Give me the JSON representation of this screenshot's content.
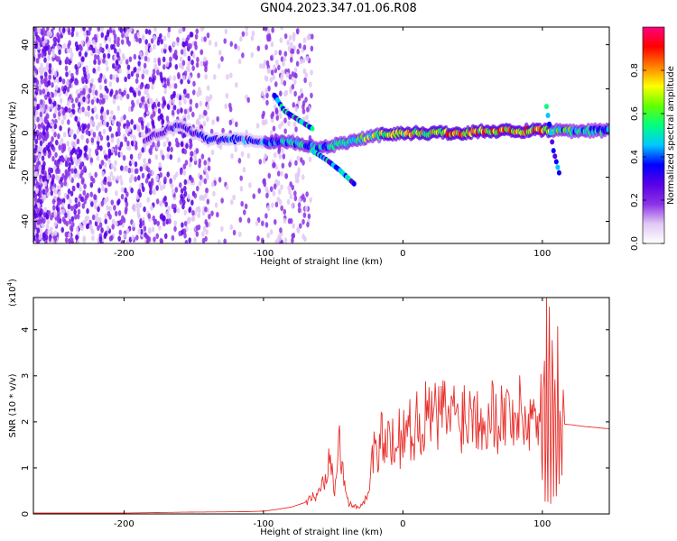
{
  "title": "GN04.2023.347.01.06.R08",
  "chart_data": [
    {
      "type": "heatmap",
      "title": "",
      "xlabel": "Height of straight line (km)",
      "ylabel": "Frequency (Hz)",
      "xlim": [
        -265,
        148
      ],
      "ylim": [
        -50,
        48
      ],
      "xticks": [
        -200,
        -100,
        0,
        100
      ],
      "xticklabels": [
        "-200",
        "-100",
        "0",
        "100"
      ],
      "yticks": [
        -40,
        -20,
        0,
        20,
        40
      ],
      "yticklabels": [
        "-40",
        "-20",
        "0",
        "20",
        "40"
      ],
      "colorbar": {
        "label": "Normalized spectral amplitude",
        "range": [
          0,
          1
        ],
        "ticks": [
          0.0,
          0.2,
          0.4,
          0.6,
          0.8
        ],
        "ticklabels": [
          "0.0",
          "0.2",
          "0.4",
          "0.6",
          "0.8"
        ],
        "colors": [
          "#ffffff",
          "#e0c8f4",
          "#8c32e6",
          "#5a00e6",
          "#0000ff",
          "#00c8ff",
          "#00ff80",
          "#64ff00",
          "#ffff00",
          "#ff8000",
          "#ff0000",
          "#ff0080"
        ]
      },
      "ridge": {
        "x": [
          -185,
          -160,
          -140,
          -120,
          -100,
          -80,
          -60,
          -40,
          -20,
          0,
          20,
          40,
          60,
          80,
          100,
          110,
          148
        ],
        "y": [
          -3,
          4,
          -3,
          -3,
          -4,
          -4,
          -7,
          -4,
          -1,
          0,
          0,
          0,
          1,
          1,
          1,
          1,
          1
        ],
        "amplitude": [
          0.3,
          0.35,
          0.4,
          0.45,
          0.45,
          0.55,
          0.6,
          0.65,
          0.75,
          0.8,
          0.85,
          0.9,
          0.95,
          1.0,
          0.9,
          0.7,
          0.5
        ]
      },
      "branches": [
        {
          "x": [
            -92,
            -85,
            -75,
            -65
          ],
          "y": [
            17,
            10,
            6,
            2
          ]
        },
        {
          "x": [
            -65,
            -55,
            -45,
            -35
          ],
          "y": [
            -8,
            -12,
            -17,
            -23
          ]
        },
        {
          "x": [
            103,
            108,
            112
          ],
          "y": [
            12,
            -8,
            -18
          ]
        }
      ]
    },
    {
      "type": "line",
      "title": "",
      "xlabel": "Height of straight line (km)",
      "ylabel": "SNR (10 * v/v)",
      "yscale_label": "(x10",
      "yscale_exp": "4",
      "yscale_close": ")",
      "xlim": [
        -265,
        148
      ],
      "ylim": [
        0,
        47000
      ],
      "xticks": [
        -200,
        -100,
        0,
        100
      ],
      "xticklabels": [
        "-200",
        "-100",
        "0",
        "100"
      ],
      "yticks": [
        0,
        10000,
        20000,
        30000,
        40000
      ],
      "yticklabels": [
        "0",
        "1",
        "2",
        "3",
        "4"
      ],
      "series": [
        {
          "color": "#e8302c",
          "x": [
            -265,
            -200,
            -150,
            -110,
            -100,
            -90,
            -80,
            -70,
            -60,
            -55,
            -52,
            -49,
            -46,
            -43,
            -40,
            -37,
            -34,
            -30,
            -27,
            -24,
            -22,
            -20,
            -18,
            -15,
            -12,
            -10,
            -8,
            -6,
            -4,
            -2,
            0,
            5,
            10,
            15,
            20,
            25,
            30,
            40,
            50,
            60,
            70,
            80,
            85,
            90,
            95,
            97,
            99,
            100,
            101,
            102,
            103,
            104,
            105,
            106,
            107,
            108,
            109,
            110,
            111,
            112,
            113,
            114,
            115,
            116,
            120,
            130,
            148
          ],
          "y": [
            200,
            200,
            400,
            500,
            600,
            1000,
            1500,
            2500,
            4500,
            9000,
            16000,
            6000,
            17000,
            8000,
            3000,
            2000,
            1500,
            2000,
            3500,
            5000,
            13000,
            17000,
            9000,
            18000,
            12000,
            20000,
            14000,
            17000,
            20000,
            16000,
            19000,
            18000,
            20000,
            20500,
            21500,
            21000,
            22000,
            21500,
            22500,
            22000,
            21500,
            22000,
            21500,
            20000,
            23000,
            15000,
            30000,
            8000,
            45000,
            3000,
            40000,
            4000,
            42000,
            2000,
            45000,
            3000,
            38000,
            6000,
            33000,
            5000,
            32000,
            10000,
            27000,
            19500,
            19400,
            19000,
            18500
          ]
        }
      ]
    }
  ]
}
